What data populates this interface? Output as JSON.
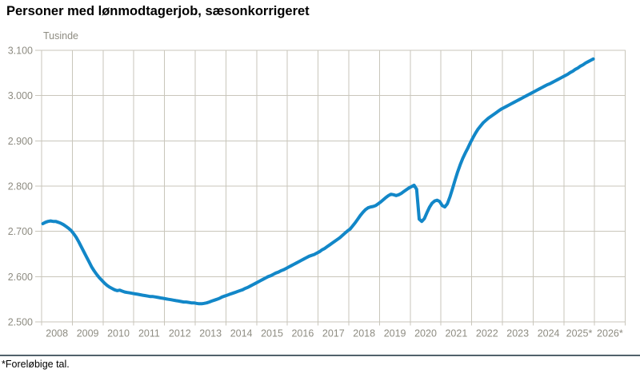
{
  "title": "Personer med lønmodtagerjob, sæsonkorrigeret",
  "footnote": "*Foreløbige tal.",
  "colors": {
    "line": "#1287c8",
    "grid": "#c9c6bb",
    "axis_text": "#8e8c82",
    "separator": "#51616b",
    "title_text": "#000000"
  },
  "chart_data": {
    "type": "line",
    "title": "Personer med lønmodtagerjob, sæsonkorrigeret",
    "ylabel": "Tusinde",
    "xlabel": "",
    "grid": true,
    "legend_position": "none",
    "ylim": [
      2500,
      3100
    ],
    "y_tick_labels": [
      "3.100",
      "3.000",
      "2.900",
      "2.800",
      "2.700",
      "2.600",
      "2.500"
    ],
    "y_tick_values": [
      3100,
      3000,
      2900,
      2800,
      2700,
      2600,
      2500
    ],
    "x_tick_labels": [
      "2008",
      "2009",
      "2010",
      "2011",
      "2012",
      "2013",
      "2014",
      "2015",
      "2016",
      "2017",
      "2018",
      "2019",
      "2020",
      "2021",
      "2022",
      "2023",
      "2024",
      "2025*",
      "2026*"
    ],
    "x_range_years": [
      2008,
      2027
    ],
    "series": [
      {
        "name": "Personer med lønmodtagerjob (tusinde)",
        "frequency": "monthly",
        "start": "2008-01",
        "end": "2025-12",
        "values": [
          2717,
          2720,
          2722,
          2723,
          2722,
          2722,
          2720,
          2718,
          2715,
          2711,
          2707,
          2702,
          2695,
          2687,
          2677,
          2666,
          2655,
          2644,
          2633,
          2622,
          2613,
          2605,
          2598,
          2592,
          2586,
          2581,
          2577,
          2574,
          2571,
          2569,
          2570,
          2568,
          2566,
          2565,
          2564,
          2563,
          2562,
          2561,
          2560,
          2559,
          2558,
          2557,
          2556,
          2556,
          2555,
          2554,
          2553,
          2552,
          2551,
          2550,
          2549,
          2548,
          2547,
          2546,
          2545,
          2544,
          2544,
          2543,
          2542,
          2542,
          2541,
          2540,
          2540,
          2541,
          2542,
          2544,
          2546,
          2548,
          2550,
          2552,
          2555,
          2557,
          2559,
          2561,
          2563,
          2565,
          2567,
          2569,
          2571,
          2574,
          2576,
          2579,
          2582,
          2585,
          2588,
          2591,
          2594,
          2597,
          2600,
          2602,
          2605,
          2608,
          2610,
          2613,
          2615,
          2618,
          2621,
          2624,
          2627,
          2630,
          2633,
          2636,
          2639,
          2642,
          2645,
          2647,
          2649,
          2652,
          2655,
          2659,
          2662,
          2666,
          2670,
          2674,
          2678,
          2682,
          2686,
          2691,
          2696,
          2701,
          2705,
          2712,
          2719,
          2727,
          2735,
          2742,
          2748,
          2752,
          2754,
          2755,
          2757,
          2761,
          2765,
          2770,
          2775,
          2779,
          2782,
          2781,
          2779,
          2781,
          2784,
          2788,
          2792,
          2796,
          2799,
          2802,
          2793,
          2727,
          2722,
          2728,
          2741,
          2753,
          2762,
          2767,
          2769,
          2766,
          2757,
          2754,
          2761,
          2776,
          2794,
          2813,
          2831,
          2847,
          2861,
          2873,
          2884,
          2896,
          2907,
          2917,
          2926,
          2933,
          2940,
          2945,
          2950,
          2954,
          2958,
          2962,
          2966,
          2970,
          2973,
          2976,
          2979,
          2982,
          2985,
          2988,
          2991,
          2994,
          2997,
          3000,
          3003,
          3006,
          3009,
          3012,
          3015,
          3018,
          3021,
          3024,
          3026,
          3029,
          3032,
          3035,
          3038,
          3041,
          3044,
          3047,
          3051,
          3054,
          3058,
          3061,
          3065,
          3068,
          3072,
          3075,
          3078,
          3081
        ]
      }
    ]
  }
}
